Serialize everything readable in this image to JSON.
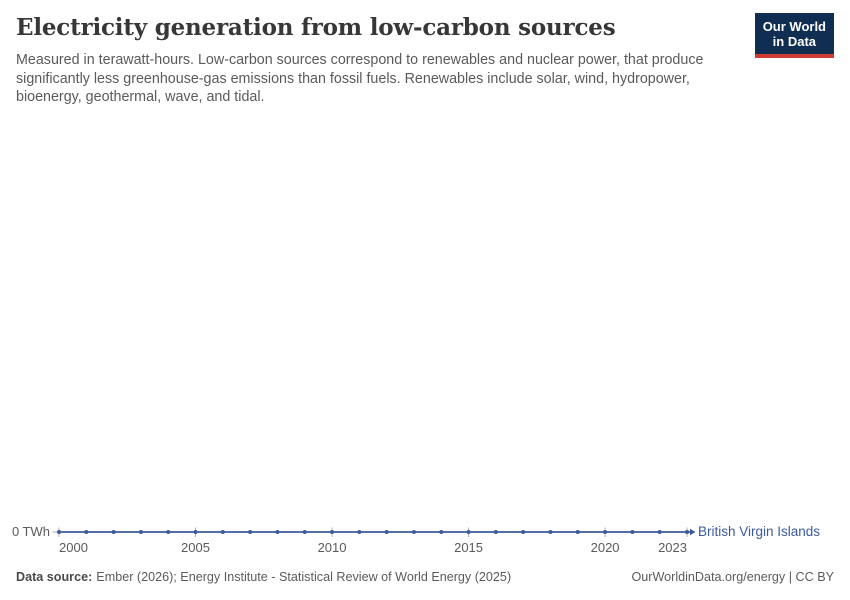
{
  "header": {
    "title": "Electricity generation from low-carbon sources",
    "subtitle": "Measured in terawatt-hours. Low-carbon sources correspond to renewables and nuclear power, that produce significantly less greenhouse-gas emissions than fossil fuels. Renewables include solar, wind, hydropower, bioenergy, geothermal, wave, and tidal.",
    "logo": {
      "line1": "Our World",
      "line2": "in Data",
      "bg_color": "#0f2e52",
      "bar_color": "#cc3c33"
    }
  },
  "chart_data": {
    "type": "line",
    "title": "Electricity generation from low-carbon sources",
    "unit": "TWh",
    "grid": false,
    "legend_position": "end-of-line",
    "x_axis": {
      "range": [
        2000,
        2023
      ],
      "ticks": [
        2000,
        2005,
        2010,
        2015,
        2020,
        2023
      ]
    },
    "y_axis": {
      "label": "0 TWh",
      "range": [
        0,
        0
      ]
    },
    "series": [
      {
        "name": "British Virgin Islands",
        "color": "#3d5a9e",
        "x": [
          2000,
          2001,
          2002,
          2003,
          2004,
          2005,
          2006,
          2007,
          2008,
          2009,
          2010,
          2011,
          2012,
          2013,
          2014,
          2015,
          2016,
          2017,
          2018,
          2019,
          2020,
          2021,
          2022,
          2023
        ],
        "values": [
          0,
          0,
          0,
          0,
          0,
          0,
          0,
          0,
          0,
          0,
          0,
          0,
          0,
          0,
          0,
          0,
          0,
          0,
          0,
          0,
          0,
          0,
          0,
          0
        ]
      }
    ]
  },
  "footer": {
    "data_source_label": "Data source:",
    "data_source": "Ember (2026); Energy Institute - Statistical Review of World Energy (2025)",
    "attribution": "OurWorldinData.org/energy | CC BY"
  }
}
